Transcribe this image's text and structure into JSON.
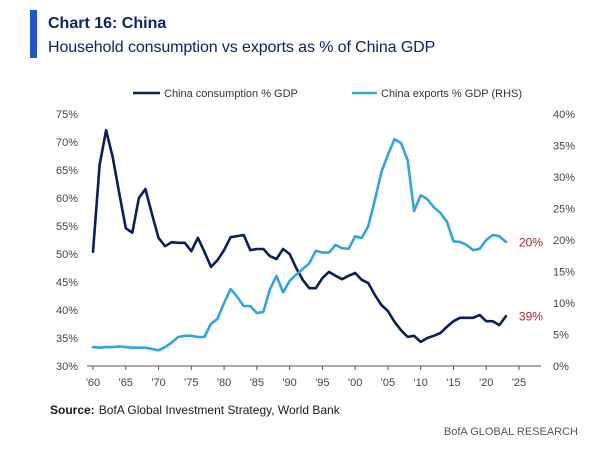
{
  "colors": {
    "accent": "#1f55c8"
  },
  "chart_data": {
    "type": "line",
    "title": "Chart 16: China",
    "subtitle": "Household consumption vs exports as % of China GDP",
    "legend": "top",
    "grid": false,
    "xlim": [
      1960,
      2025
    ],
    "x_ticks": [
      1960,
      1965,
      1970,
      1975,
      1980,
      1985,
      1990,
      1995,
      2000,
      2005,
      2010,
      2015,
      2020,
      2025
    ],
    "x_tick_labels": [
      "'60",
      "'65",
      "'70",
      "'75",
      "'80",
      "'85",
      "'90",
      "'95",
      "'00",
      "'05",
      "'10",
      "'15",
      "'20",
      "'25"
    ],
    "y_left": {
      "range": [
        30,
        75
      ],
      "ticks": [
        30,
        35,
        40,
        45,
        50,
        55,
        60,
        65,
        70,
        75
      ],
      "tick_labels": [
        "30%",
        "35%",
        "40%",
        "45%",
        "50%",
        "55%",
        "60%",
        "65%",
        "70%",
        "75%"
      ]
    },
    "y_right": {
      "range": [
        0,
        40
      ],
      "ticks": [
        0,
        5,
        10,
        15,
        20,
        25,
        30,
        35,
        40
      ],
      "tick_labels": [
        "0%",
        "5%",
        "10%",
        "15%",
        "20%",
        "25%",
        "30%",
        "35%",
        "40%"
      ]
    },
    "x": [
      1960,
      1961,
      1962,
      1963,
      1964,
      1965,
      1966,
      1967,
      1968,
      1969,
      1970,
      1971,
      1972,
      1973,
      1974,
      1975,
      1976,
      1977,
      1978,
      1979,
      1980,
      1981,
      1982,
      1983,
      1984,
      1985,
      1986,
      1987,
      1988,
      1989,
      1990,
      1991,
      1992,
      1993,
      1994,
      1995,
      1996,
      1997,
      1998,
      1999,
      2000,
      2001,
      2002,
      2003,
      2004,
      2005,
      2006,
      2007,
      2008,
      2009,
      2010,
      2011,
      2012,
      2013,
      2014,
      2015,
      2016,
      2017,
      2018,
      2019,
      2020,
      2021,
      2022,
      2023
    ],
    "series": [
      {
        "name": "China consumption % GDP",
        "axis": "left",
        "color": "#0b1d5a",
        "values": [
          50.4,
          65.9,
          72.1,
          67.3,
          60.9,
          54.6,
          53.8,
          60.0,
          61.6,
          57.1,
          52.9,
          51.4,
          52.1,
          52.0,
          52.0,
          50.5,
          52.9,
          50.4,
          47.7,
          48.9,
          50.7,
          53.0,
          53.2,
          53.4,
          50.7,
          50.9,
          50.9,
          49.6,
          49.1,
          50.9,
          50.0,
          47.5,
          45.4,
          43.9,
          43.9,
          45.7,
          46.8,
          46.1,
          45.5,
          46.1,
          46.6,
          45.4,
          44.8,
          42.7,
          40.9,
          39.8,
          37.9,
          36.4,
          35.2,
          35.4,
          34.3,
          35.0,
          35.4,
          35.9,
          37.0,
          38.0,
          38.6,
          38.6,
          38.6,
          39.1,
          38.0,
          38.0,
          37.3,
          38.9
        ]
      },
      {
        "name": "China exports % GDP (RHS)",
        "axis": "right",
        "color": "#35a3dc",
        "values": [
          3.0,
          2.9,
          3.0,
          3.0,
          3.1,
          3.0,
          2.9,
          2.9,
          2.9,
          2.7,
          2.5,
          3.0,
          3.7,
          4.6,
          4.8,
          4.8,
          4.6,
          4.6,
          6.7,
          7.5,
          10.0,
          12.2,
          11.0,
          9.5,
          9.5,
          8.4,
          8.6,
          12.2,
          14.3,
          11.7,
          13.5,
          14.5,
          15.4,
          16.3,
          18.3,
          18.0,
          18.0,
          19.2,
          18.7,
          18.6,
          20.6,
          20.3,
          22.2,
          26.3,
          30.8,
          33.5,
          36.0,
          35.4,
          32.7,
          24.6,
          27.1,
          26.5,
          25.2,
          24.3,
          22.9,
          19.8,
          19.7,
          19.2,
          18.4,
          18.6,
          20.0,
          20.8,
          20.6,
          19.7
        ]
      }
    ],
    "annotations": [
      {
        "text": "39%",
        "series_index": 0,
        "color": "#b41e32"
      },
      {
        "text": "20%",
        "series_index": 1,
        "color": "#b41e32"
      }
    ]
  },
  "footer": {
    "source_label": "Source:",
    "source_text": "BofA Global Investment Strategy, World Bank",
    "brand": "BofA GLOBAL RESEARCH"
  }
}
